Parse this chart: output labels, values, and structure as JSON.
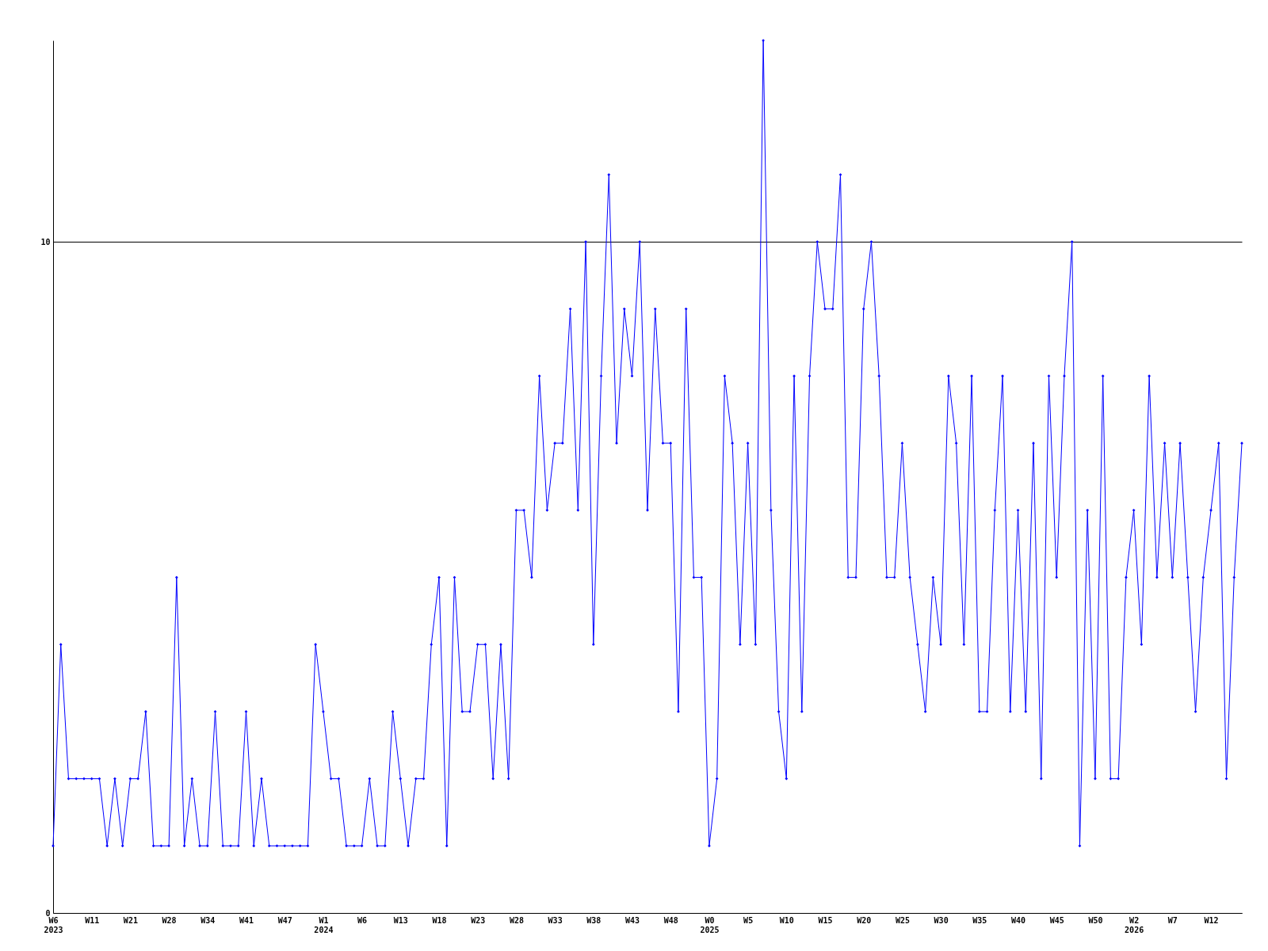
{
  "chart_data": {
    "type": "line",
    "categories": [
      "W6\n2023",
      null,
      null,
      null,
      null,
      "W11",
      null,
      null,
      null,
      null,
      "W21",
      null,
      null,
      null,
      null,
      "W28",
      null,
      null,
      null,
      null,
      "W34",
      null,
      null,
      null,
      null,
      "W41",
      null,
      null,
      null,
      null,
      "W47",
      null,
      null,
      null,
      null,
      "W1\n2024",
      null,
      null,
      null,
      null,
      "W6",
      null,
      null,
      null,
      null,
      "W13",
      null,
      null,
      null,
      null,
      "W18",
      null,
      null,
      null,
      null,
      "W23",
      null,
      null,
      null,
      null,
      "W28",
      null,
      null,
      null,
      null,
      "W33",
      null,
      null,
      null,
      null,
      "W38",
      null,
      null,
      null,
      null,
      "W43",
      null,
      null,
      null,
      null,
      "W48",
      null,
      null,
      null,
      null,
      "W0\n2025",
      null,
      null,
      null,
      null,
      "W5",
      null,
      null,
      null,
      null,
      "W10",
      null,
      null,
      null,
      null,
      "W15",
      null,
      null,
      null,
      null,
      "W20",
      null,
      null,
      null,
      null,
      "W25",
      null,
      null,
      null,
      null,
      "W30",
      null,
      null,
      null,
      null,
      "W35",
      null,
      null,
      null,
      null,
      "W40",
      null,
      null,
      null,
      null,
      "W45",
      null,
      null,
      null,
      null,
      "W50",
      null,
      null,
      null,
      null,
      "W2\n2026",
      null,
      null,
      null,
      null,
      "W7",
      null,
      null,
      null,
      null,
      "W12",
      null,
      null,
      null,
      null
    ],
    "series": [
      {
        "color": "#0000ff",
        "values": [
          1,
          4,
          2,
          2,
          2,
          2,
          2,
          1,
          2,
          1,
          2,
          2,
          3,
          1,
          1,
          1,
          5,
          1,
          2,
          1,
          1,
          3,
          1,
          1,
          1,
          3,
          1,
          2,
          1,
          1,
          1,
          1,
          1,
          1,
          4,
          3,
          2,
          2,
          1,
          1,
          1,
          2,
          1,
          1,
          3,
          2,
          1,
          2,
          2,
          4,
          5,
          1,
          5,
          3,
          3,
          4,
          4,
          2,
          4,
          2,
          6,
          6,
          5,
          8,
          6,
          7,
          7,
          9,
          6,
          10,
          4,
          8,
          11,
          7,
          9,
          8,
          10,
          6,
          9,
          7,
          7,
          3,
          9,
          5,
          5,
          1,
          2,
          8,
          7,
          4,
          7,
          4,
          13,
          6,
          3,
          2,
          8,
          3,
          8,
          10,
          9,
          9,
          11,
          5,
          5,
          9,
          10,
          8,
          5,
          5,
          7,
          5,
          4,
          3,
          5,
          4,
          8,
          7,
          4,
          8,
          3,
          3,
          6,
          8,
          3,
          6,
          3,
          7,
          2,
          8,
          5,
          8,
          10,
          1,
          6,
          2,
          8,
          2,
          2,
          5,
          6,
          4,
          8,
          5,
          7,
          5,
          7,
          5,
          3,
          5,
          6,
          7,
          2,
          5,
          7
        ]
      }
    ],
    "ylim": [
      0,
      13
    ],
    "yticks": [
      0,
      10
    ],
    "grid": "y",
    "marker": "diamond",
    "line_style": "solid"
  }
}
